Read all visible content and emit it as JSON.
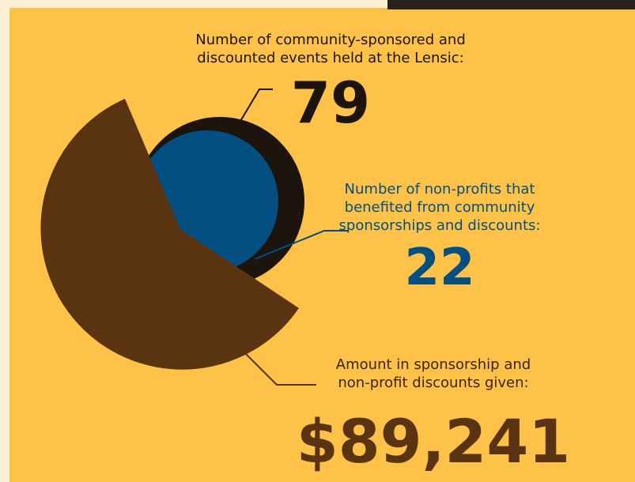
{
  "stats": [
    {
      "label": [
        "Number of community-sponsored and",
        "discounted events held at the Lensic:"
      ],
      "value": "79"
    },
    {
      "label": [
        "Number of non-profits that",
        "benefited from community",
        "sponsorships and discounts:"
      ],
      "value": "22"
    },
    {
      "label": [
        "Amount in sponsorship and",
        "non-profit discounts given:"
      ],
      "value": "$89,241"
    }
  ]
}
